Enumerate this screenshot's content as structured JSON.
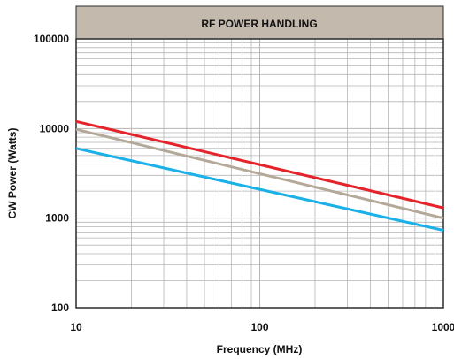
{
  "chart_data": {
    "type": "line",
    "title": "RF POWER HANDLING",
    "xlabel": "Frequency (MHz)",
    "ylabel": "CW Power (Watts)",
    "xscale": "log",
    "yscale": "log",
    "xlim": [
      10,
      1000
    ],
    "ylim": [
      100,
      100000
    ],
    "x_ticks": [
      10,
      100,
      1000
    ],
    "x_tick_labels": [
      "10",
      "100",
      "1000"
    ],
    "y_ticks": [
      100,
      1000,
      10000,
      100000
    ],
    "y_tick_labels": [
      "100",
      "1000",
      "10000",
      "100000"
    ],
    "grid": true,
    "legend": "none",
    "series": [
      {
        "x": [
          10,
          1000
        ],
        "y": [
          12000,
          1300
        ],
        "color": "#e4232b"
      },
      {
        "x": [
          10,
          1000
        ],
        "y": [
          9800,
          1000
        ],
        "color": "#b4a999"
      },
      {
        "x": [
          10,
          1000
        ],
        "y": [
          6000,
          730
        ],
        "color": "#1ab0e8"
      }
    ],
    "colors": {
      "title_band": "#c4b9ad",
      "frame": "#2a2a2a",
      "grid": "#b5b5b5"
    }
  }
}
